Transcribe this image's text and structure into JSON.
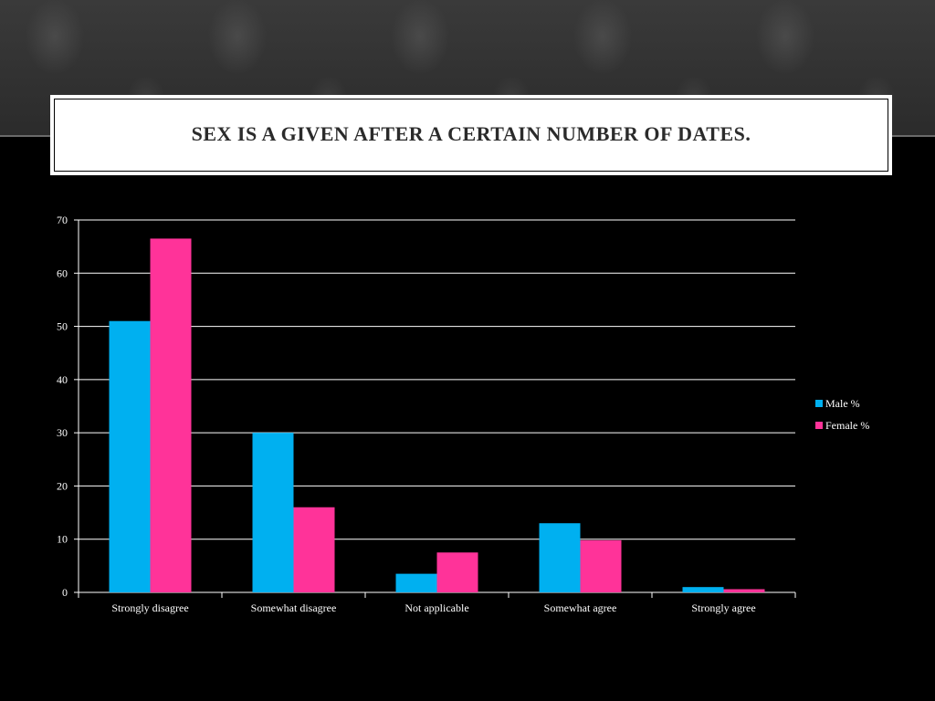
{
  "slide": {
    "title": "SEX IS A GIVEN AFTER A CERTAIN NUMBER OF DATES."
  },
  "chart_data": {
    "type": "bar",
    "categories": [
      "Strongly disagree",
      "Somewhat disagree",
      "Not applicable",
      "Somewhat agree",
      "Strongly agree"
    ],
    "series": [
      {
        "name": "Male %",
        "color": "#00b0f0",
        "values": [
          51,
          30,
          3.5,
          13,
          1
        ]
      },
      {
        "name": "Female %",
        "color": "#ff3399",
        "values": [
          66.5,
          16,
          7.5,
          9.8,
          0.6
        ]
      }
    ],
    "ylim": [
      0,
      70
    ],
    "yticks": [
      0,
      10,
      20,
      30,
      40,
      50,
      60,
      70
    ],
    "grid": true,
    "legend": "right",
    "xlabel": "",
    "ylabel": ""
  }
}
